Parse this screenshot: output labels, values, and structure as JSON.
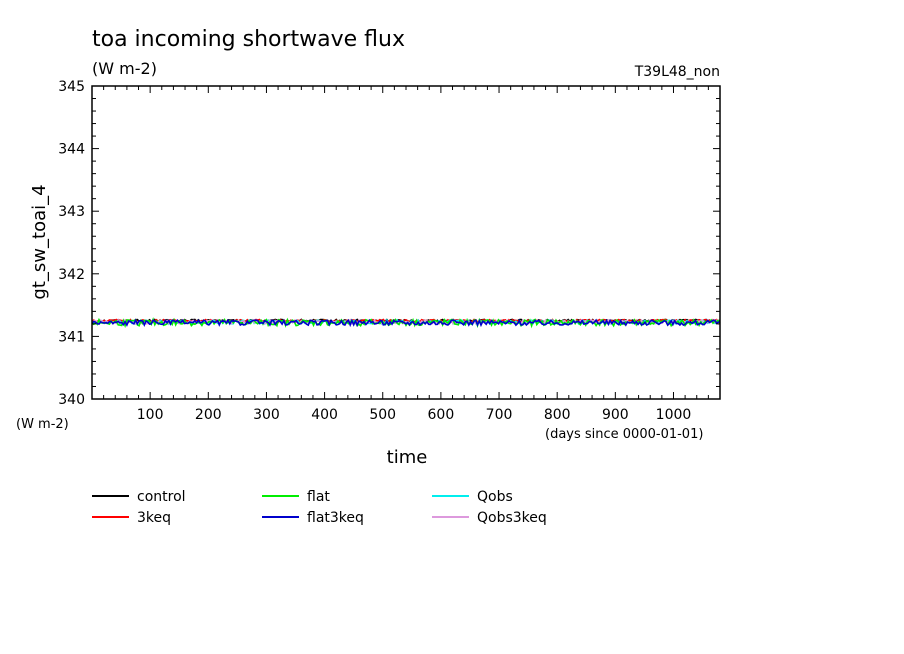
{
  "chart_data": {
    "type": "line",
    "title": "toa incoming shortwave flux",
    "title_units": "(W m-2)",
    "run_label": "T39L48_non",
    "ylabel": "gt_sw_toai_4",
    "ylabel_units": "(W m-2)",
    "xlabel": "time",
    "xlabel_units": "(days since 0000-01-01)",
    "xlim": [
      0,
      1080
    ],
    "ylim": [
      340,
      345
    ],
    "x_ticks": [
      100,
      200,
      300,
      400,
      500,
      600,
      700,
      800,
      900,
      1000
    ],
    "y_ticks": [
      340,
      341,
      342,
      343,
      344,
      345
    ],
    "legend_position": "bottom",
    "series": [
      {
        "name": "control",
        "color": "#000000",
        "mean": 341.25,
        "amplitude": 0.02
      },
      {
        "name": "3keq",
        "color": "#ff0000",
        "mean": 341.25,
        "amplitude": 0.02
      },
      {
        "name": "flat",
        "color": "#00ee00",
        "mean": 341.22,
        "amplitude": 0.05
      },
      {
        "name": "flat3keq",
        "color": "#0000cc",
        "mean": 341.22,
        "amplitude": 0.04
      },
      {
        "name": "Qobs",
        "color": "#00eeee",
        "mean": 341.23,
        "amplitude": 0.03
      },
      {
        "name": "Qobs3keq",
        "color": "#dd99dd",
        "mean": 341.23,
        "amplitude": 0.03
      }
    ]
  }
}
